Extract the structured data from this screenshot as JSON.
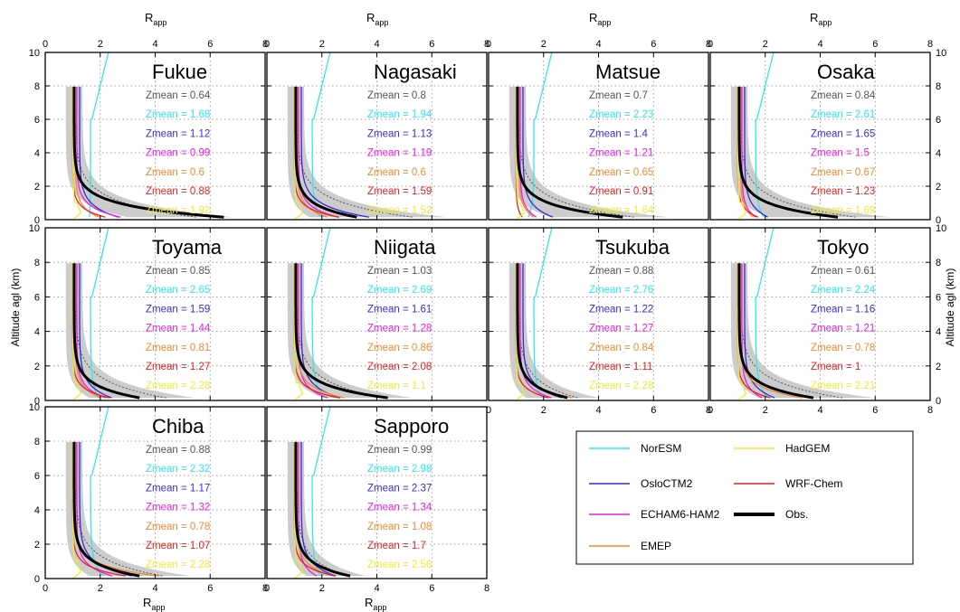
{
  "figure": {
    "top_axis_label": "R",
    "top_axis_sub": "app",
    "bottom_axis_label": "R",
    "bottom_axis_sub": "app",
    "y_axis_label": "Altitude agl (km)",
    "x_ticks": [
      "0",
      "2",
      "4",
      "6",
      "8"
    ],
    "y_ticks": [
      "0",
      "2",
      "4",
      "6",
      "8",
      "10"
    ]
  },
  "model_colors": {
    "NorESM": "#2ee6f0",
    "OsloCTM2": "#3a2ad6",
    "ECHAM6-HAM2": "#e81ee0",
    "EMEP": "#f08a30",
    "WRF-Chem": "#e82020",
    "HadGEM": "#ecec3a",
    "Obs.": "#000000"
  },
  "zmean_order": [
    "Obs.",
    "NorESM",
    "OsloCTM2",
    "ECHAM6-HAM2",
    "EMEP",
    "WRF-Chem",
    "HadGEM"
  ],
  "zmean_prefix": "Zmean = ",
  "legend": {
    "left": [
      "NorESM",
      "OsloCTM2",
      "ECHAM6-HAM2",
      "EMEP"
    ],
    "right": [
      "HadGEM",
      "WRF-Chem",
      "Obs."
    ]
  },
  "chart_data": [
    {
      "type": "line",
      "title": "Fukue",
      "xlim": [
        0,
        8
      ],
      "ylim": [
        0,
        10
      ],
      "zmean": [
        "0.64",
        "1.68",
        "1.12",
        "0.99",
        "0.6",
        "0.88",
        "1.92"
      ],
      "obs_surface": 7.8,
      "spread_surface": 7.8,
      "model_surface": [
        1.6,
        3.0,
        3.2,
        2.2,
        2.6,
        1.2
      ]
    },
    {
      "type": "line",
      "title": "Nagasaki",
      "xlim": [
        0,
        8
      ],
      "ylim": [
        0,
        10
      ],
      "zmean": [
        "0.8",
        "1.94",
        "1.13",
        "1.19",
        "0.6",
        "1.59",
        "1.52"
      ],
      "obs_surface": 3.8,
      "spread_surface": 7.5,
      "model_surface": [
        2.0,
        4.3,
        3.0,
        2.5,
        3.2,
        1.1
      ]
    },
    {
      "type": "line",
      "title": "Matsue",
      "xlim": [
        0,
        8
      ],
      "ylim": [
        0,
        10
      ],
      "zmean": [
        "0.7",
        "2.23",
        "1.4",
        "1.21",
        "0.65",
        "0.91",
        "1.64"
      ],
      "obs_surface": 5.8,
      "spread_surface": 7.5,
      "model_surface": [
        1.4,
        2.6,
        1.9,
        1.8,
        1.3,
        1.1
      ]
    },
    {
      "type": "line",
      "title": "Osaka",
      "xlim": [
        0,
        8
      ],
      "ylim": [
        0,
        10
      ],
      "zmean": [
        "0.84",
        "2.61",
        "1.65",
        "1.5",
        "0.67",
        "1.23",
        "1.69"
      ],
      "obs_surface": 5.5,
      "spread_surface": 7.5,
      "model_surface": [
        2.0,
        2.3,
        1.8,
        1.7,
        2.0,
        1.1
      ]
    },
    {
      "type": "line",
      "title": "Toyama",
      "xlim": [
        0,
        8
      ],
      "ylim": [
        0,
        10
      ],
      "zmean": [
        "0.85",
        "2.65",
        "1.59",
        "1.44",
        "0.81",
        "1.27",
        "2.28"
      ],
      "obs_surface": 4.0,
      "spread_surface": 6.2,
      "model_surface": [
        2.0,
        2.7,
        2.5,
        2.3,
        2.8,
        1.2
      ]
    },
    {
      "type": "line",
      "title": "Niigata",
      "xlim": [
        0,
        8
      ],
      "ylim": [
        0,
        10
      ],
      "zmean": [
        "1.03",
        "2.69",
        "1.61",
        "1.28",
        "0.86",
        "2.08",
        "1.1"
      ],
      "obs_surface": 5.2,
      "spread_surface": 6.0,
      "model_surface": [
        2.2,
        3.0,
        2.5,
        3.3,
        3.2,
        1.2
      ]
    },
    {
      "type": "line",
      "title": "Tsukuba",
      "xlim": [
        0,
        8
      ],
      "ylim": [
        0,
        10
      ],
      "zmean": [
        "0.88",
        "2.76",
        "1.22",
        "1.27",
        "0.84",
        "1.11",
        "2.28"
      ],
      "obs_surface": 3.3,
      "spread_surface": 4.5,
      "model_surface": [
        2.0,
        3.0,
        2.6,
        3.6,
        2.6,
        1.3
      ]
    },
    {
      "type": "line",
      "title": "Tokyo",
      "xlim": [
        0,
        8
      ],
      "ylim": [
        0,
        10
      ],
      "zmean": [
        "0.61",
        "2.24",
        "1.16",
        "1.21",
        "0.78",
        "1",
        "2.21"
      ],
      "obs_surface": 4.4,
      "spread_surface": 6.8,
      "model_surface": [
        2.2,
        2.6,
        2.1,
        4.0,
        2.6,
        1.2
      ]
    },
    {
      "type": "line",
      "title": "Chiba",
      "xlim": [
        0,
        8
      ],
      "ylim": [
        0,
        10
      ],
      "zmean": [
        "0.88",
        "2.32",
        "1.17",
        "1.32",
        "0.78",
        "1.07",
        "2.28"
      ],
      "obs_surface": 4.0,
      "spread_surface": 6.0,
      "model_surface": [
        2.2,
        3.6,
        2.8,
        5.0,
        3.6,
        1.3
      ]
    },
    {
      "type": "line",
      "title": "Sapporo",
      "xlim": [
        0,
        8
      ],
      "ylim": [
        0,
        10
      ],
      "zmean": [
        "0.99",
        "2.98",
        "2.37",
        "1.34",
        "1.08",
        "1.7",
        "2.56"
      ],
      "obs_surface": 3.5,
      "spread_surface": 4.0,
      "model_surface": [
        2.0,
        2.8,
        2.0,
        2.8,
        3.0,
        1.3
      ]
    }
  ]
}
